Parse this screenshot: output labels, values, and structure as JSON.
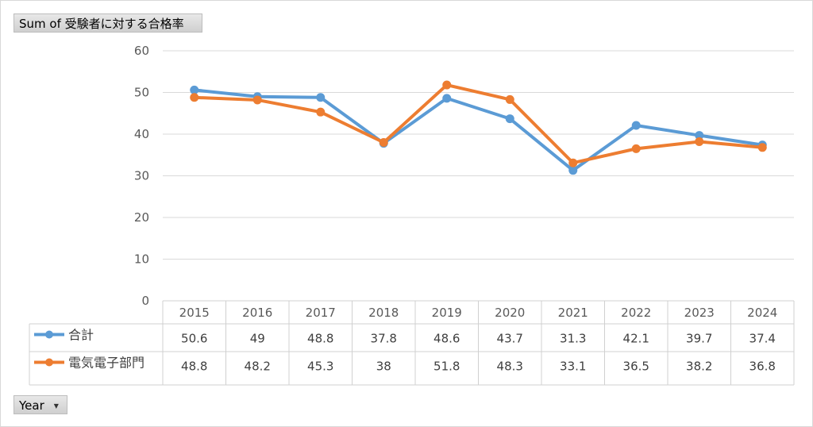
{
  "field_buttons": {
    "value_field": "Sum of 受験者に対する合格率",
    "axis_field": "Year"
  },
  "chart_data": {
    "type": "line",
    "categories": [
      "2015",
      "2016",
      "2017",
      "2018",
      "2019",
      "2020",
      "2021",
      "2022",
      "2023",
      "2024"
    ],
    "series": [
      {
        "name": "合計",
        "color": "#5b9bd5",
        "values": [
          50.6,
          49,
          48.8,
          37.8,
          48.6,
          43.7,
          31.3,
          42.1,
          39.7,
          37.4
        ]
      },
      {
        "name": "電気電子部門",
        "color": "#ed7d31",
        "values": [
          48.8,
          48.2,
          45.3,
          38,
          51.8,
          48.3,
          33.1,
          36.5,
          38.2,
          36.8
        ]
      }
    ],
    "ylim": [
      0,
      60
    ],
    "yticks": [
      0,
      10,
      20,
      30,
      40,
      50,
      60
    ],
    "grid": true,
    "data_table": true
  }
}
